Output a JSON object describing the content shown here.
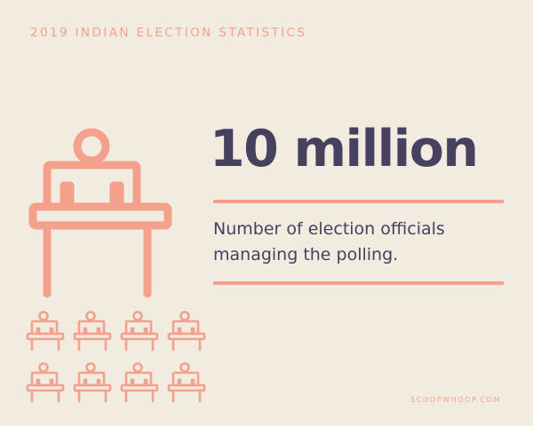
{
  "header": {
    "title": "2019 INDIAN ELECTION STATISTICS"
  },
  "stat": {
    "value": "10 million",
    "description_line1": "Number of election officials",
    "description_line2": "managing the polling."
  },
  "footer": {
    "brand": "SCOOPWHOOP.COM"
  },
  "icons": {
    "main": "election-official-at-desk-icon",
    "grid_item": "election-official-at-desk-icon",
    "grid_rows": 2,
    "grid_columns": 4
  },
  "colors": {
    "background": "#f2ebe0",
    "accent": "#f3a18c",
    "text": "#46415f"
  }
}
